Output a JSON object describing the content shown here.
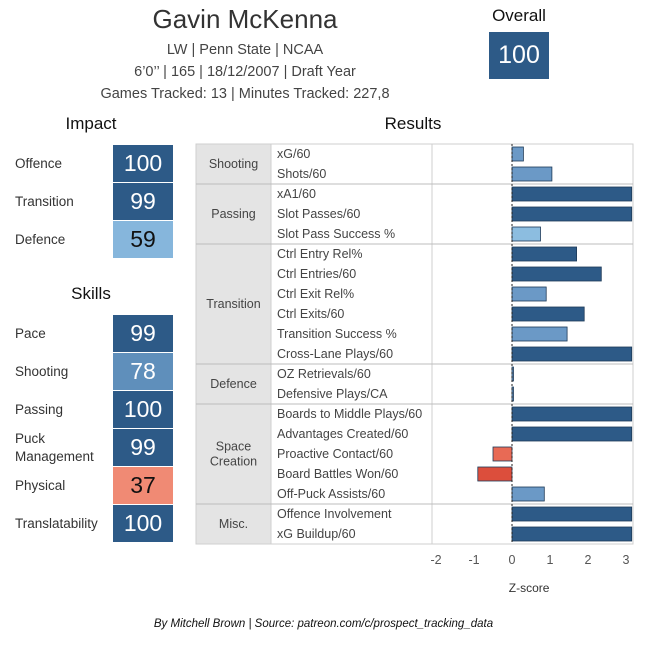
{
  "player": {
    "name": "Gavin McKenna",
    "line1": "LW | Penn State | NCAA",
    "line2": "6’0’’ | 165 | 18/12/2007 |  Draft Year",
    "line3": "Games Tracked: 13 | Minutes Tracked: 227,8"
  },
  "overall": {
    "title": "Overall",
    "value": "100",
    "color": "#2d5a87"
  },
  "impact": {
    "title": "Impact",
    "items": [
      {
        "label": "Offence",
        "value": "100",
        "color": "#2d5a87"
      },
      {
        "label": "Transition",
        "value": "99",
        "color": "#2d5a87"
      },
      {
        "label": "Defence",
        "value": "59",
        "color": "#86b6dc"
      }
    ]
  },
  "skills": {
    "title": "Skills",
    "items": [
      {
        "label": "Pace",
        "value": "99",
        "color": "#2d5a87"
      },
      {
        "label": "Shooting",
        "value": "78",
        "color": "#5f8fbb"
      },
      {
        "label": "Passing",
        "value": "100",
        "color": "#2d5a87"
      },
      {
        "label": "Puck Management",
        "value": "99",
        "color": "#2d5a87"
      },
      {
        "label": "Physical",
        "value": "37",
        "color": "#f08a74"
      },
      {
        "label": "Translatability",
        "value": "100",
        "color": "#2d5a87"
      }
    ]
  },
  "results_title": "Results",
  "footer": "By Mitchell Brown | Source: patreon.com/c/prospect_tracking_data",
  "colors": {
    "strong_positive": "#2d5a87",
    "moderate_positive": "#6b99c6",
    "weak_positive": "#8cbde0",
    "moderate_negative": "#e86a55",
    "strong_negative": "#dc4e3c",
    "group_background": "#e4e4e4"
  },
  "chart_data": {
    "type": "bar",
    "orientation": "horizontal",
    "title": "Results",
    "xlabel": "Z-score",
    "xlim": [
      -2.1,
      3.15
    ],
    "xticks": [
      "-2",
      "-1",
      "0",
      "1",
      "2",
      "3"
    ],
    "groups": [
      {
        "name": "Shooting",
        "metrics": [
          {
            "label": "xG/60",
            "value": 0.3
          },
          {
            "label": "Shots/60",
            "value": 1.05
          }
        ]
      },
      {
        "name": "Passing",
        "metrics": [
          {
            "label": "xA1/60",
            "value": 3.15
          },
          {
            "label": "Slot Passes/60",
            "value": 3.15
          },
          {
            "label": "Slot Pass Success %",
            "value": 0.75
          }
        ]
      },
      {
        "name": "Transition",
        "metrics": [
          {
            "label": "Ctrl Entry Rel%",
            "value": 1.7
          },
          {
            "label": "Ctrl Entries/60",
            "value": 2.35
          },
          {
            "label": "Ctrl Exit Rel%",
            "value": 0.9
          },
          {
            "label": "Ctrl Exits/60",
            "value": 1.9
          },
          {
            "label": "Transition Success %",
            "value": 1.45
          },
          {
            "label": "Cross-Lane Plays/60",
            "value": 3.15
          }
        ]
      },
      {
        "name": "Defence",
        "metrics": [
          {
            "label": "OZ Retrievals/60",
            "value": 0.02
          },
          {
            "label": "Defensive Plays/CA",
            "value": 0.02
          }
        ]
      },
      {
        "name": "Space Creation",
        "metrics": [
          {
            "label": "Boards to Middle Plays/60",
            "value": 3.15
          },
          {
            "label": "Advantages Created/60",
            "value": 3.15
          },
          {
            "label": "Proactive Contact/60",
            "value": -0.5
          },
          {
            "label": "Board Battles Won/60",
            "value": -0.9
          },
          {
            "label": "Off-Puck Assists/60",
            "value": 0.85
          }
        ]
      },
      {
        "name": "Misc.",
        "metrics": [
          {
            "label": "Offence Involvement",
            "value": 3.15
          },
          {
            "label": "xG Buildup/60",
            "value": 3.15
          }
        ]
      }
    ]
  }
}
